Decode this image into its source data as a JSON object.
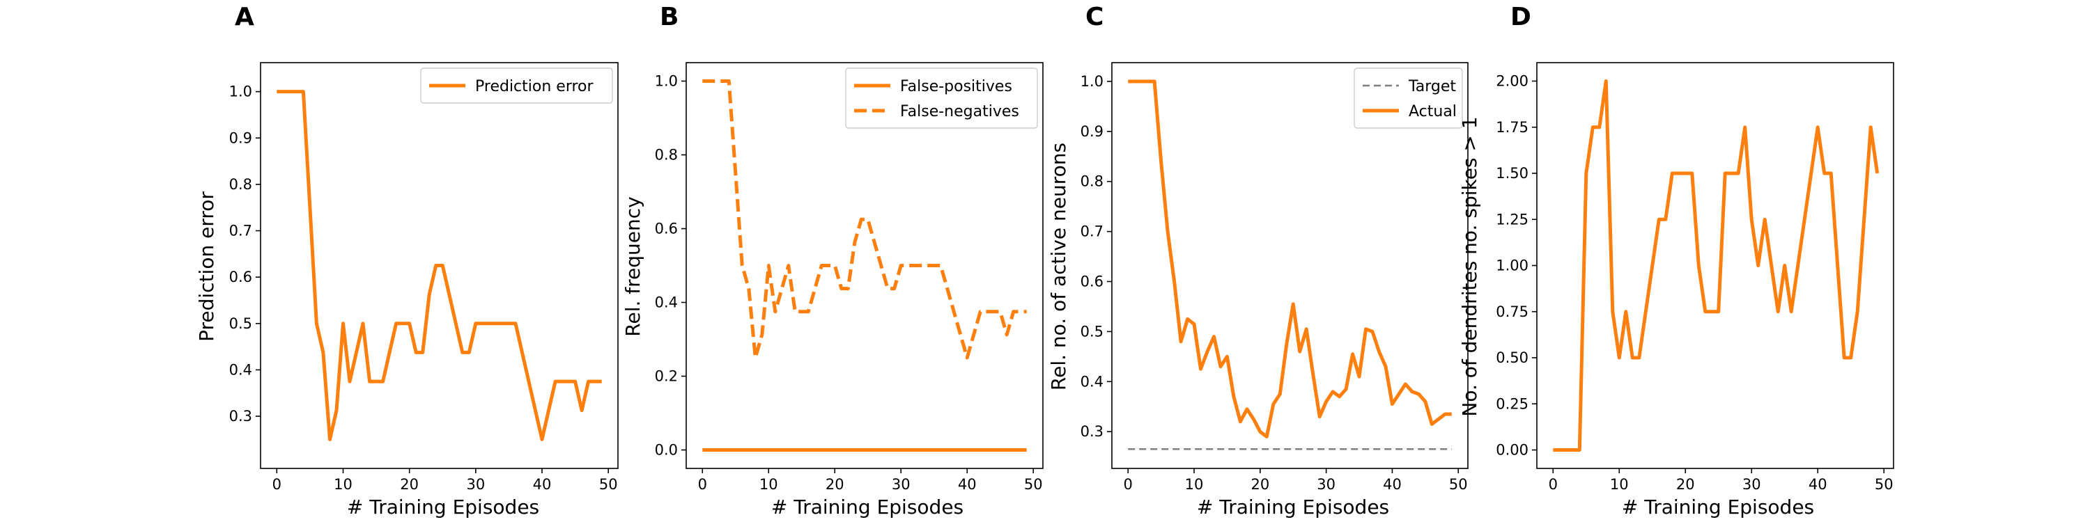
{
  "panels": [
    {
      "letter": "A",
      "xlabel": "# Training Episodes",
      "ylabel": "Prediction error"
    },
    {
      "letter": "B",
      "xlabel": "# Training Episodes",
      "ylabel": "Rel. frequency"
    },
    {
      "letter": "C",
      "xlabel": "# Training Episodes",
      "ylabel": "Rel. no. of active neurons"
    },
    {
      "letter": "D",
      "xlabel": "# Training Episodes",
      "ylabel": "No. of dendrites no. spikes > 1"
    }
  ],
  "colors": {
    "series": "#ff7f0e",
    "target": "#7f7f7f",
    "axes": "#000000"
  },
  "chart_data": [
    {
      "type": "line",
      "title": "A",
      "xlabel": "# Training Episodes",
      "ylabel": "Prediction error",
      "xlim": [
        -2.45,
        51.45
      ],
      "ylim": [
        0.1875,
        1.0625
      ],
      "xticks": [
        0,
        10,
        20,
        30,
        40,
        50
      ],
      "yticks": [
        0.3,
        0.4,
        0.5,
        0.6,
        0.7,
        0.8,
        0.9,
        1.0
      ],
      "ytick_labels": [
        "0.3",
        "0.4",
        "0.5",
        "0.6",
        "0.7",
        "0.8",
        "0.9",
        "1.0"
      ],
      "legend": "top-right",
      "series": [
        {
          "name": "Prediction error",
          "style": "solid",
          "color": "#ff7f0e",
          "x": [
            0,
            1,
            2,
            3,
            4,
            5,
            6,
            7,
            8,
            9,
            10,
            11,
            12,
            13,
            14,
            15,
            16,
            17,
            18,
            19,
            20,
            21,
            22,
            23,
            24,
            25,
            26,
            27,
            28,
            29,
            30,
            31,
            32,
            33,
            34,
            35,
            36,
            37,
            38,
            39,
            40,
            41,
            42,
            43,
            44,
            45,
            46,
            47,
            48,
            49
          ],
          "y": [
            1.0,
            1.0,
            1.0,
            1.0,
            1.0,
            0.75,
            0.5,
            0.4375,
            0.25,
            0.3125,
            0.5,
            0.375,
            0.4375,
            0.5,
            0.375,
            0.375,
            0.375,
            0.4375,
            0.5,
            0.5,
            0.5,
            0.4375,
            0.4375,
            0.5625,
            0.625,
            0.625,
            0.5625,
            0.5,
            0.4375,
            0.4375,
            0.5,
            0.5,
            0.5,
            0.5,
            0.5,
            0.5,
            0.5,
            0.4375,
            0.375,
            0.3125,
            0.25,
            0.3125,
            0.375,
            0.375,
            0.375,
            0.375,
            0.3125,
            0.375,
            0.375,
            0.375
          ]
        }
      ]
    },
    {
      "type": "line",
      "title": "B",
      "xlabel": "# Training Episodes",
      "ylabel": "Rel. frequency",
      "xlim": [
        -2.45,
        51.45
      ],
      "ylim": [
        -0.05,
        1.05
      ],
      "xticks": [
        0,
        10,
        20,
        30,
        40,
        50
      ],
      "yticks": [
        0.0,
        0.2,
        0.4,
        0.6,
        0.8,
        1.0
      ],
      "ytick_labels": [
        "0.0",
        "0.2",
        "0.4",
        "0.6",
        "0.8",
        "1.0"
      ],
      "legend": "top-right",
      "series": [
        {
          "name": "False-positives",
          "style": "solid",
          "color": "#ff7f0e",
          "x": [
            0,
            49
          ],
          "y": [
            0.0,
            0.0
          ]
        },
        {
          "name": "False-negatives",
          "style": "dashed",
          "color": "#ff7f0e",
          "x": [
            0,
            1,
            2,
            3,
            4,
            5,
            6,
            7,
            8,
            9,
            10,
            11,
            12,
            13,
            14,
            15,
            16,
            17,
            18,
            19,
            20,
            21,
            22,
            23,
            24,
            25,
            26,
            27,
            28,
            29,
            30,
            31,
            32,
            33,
            34,
            35,
            36,
            37,
            38,
            39,
            40,
            41,
            42,
            43,
            44,
            45,
            46,
            47,
            48,
            49
          ],
          "y": [
            1.0,
            1.0,
            1.0,
            1.0,
            1.0,
            0.75,
            0.5,
            0.4375,
            0.25,
            0.3125,
            0.5,
            0.375,
            0.4375,
            0.5,
            0.375,
            0.375,
            0.375,
            0.4375,
            0.5,
            0.5,
            0.5,
            0.4375,
            0.4375,
            0.5625,
            0.625,
            0.625,
            0.5625,
            0.5,
            0.4375,
            0.4375,
            0.5,
            0.5,
            0.5,
            0.5,
            0.5,
            0.5,
            0.5,
            0.4375,
            0.375,
            0.3125,
            0.25,
            0.3125,
            0.375,
            0.375,
            0.375,
            0.375,
            0.3125,
            0.375,
            0.375,
            0.375
          ]
        }
      ]
    },
    {
      "type": "line",
      "title": "C",
      "xlabel": "# Training Episodes",
      "ylabel": "Rel. no. of active neurons",
      "xlim": [
        -2.45,
        51.45
      ],
      "ylim": [
        0.2265,
        1.0375
      ],
      "xticks": [
        0,
        10,
        20,
        30,
        40,
        50
      ],
      "yticks": [
        0.3,
        0.4,
        0.5,
        0.6,
        0.7,
        0.8,
        0.9,
        1.0
      ],
      "ytick_labels": [
        "0.3",
        "0.4",
        "0.5",
        "0.6",
        "0.7",
        "0.8",
        "0.9",
        "1.0"
      ],
      "legend": "top-right",
      "series": [
        {
          "name": "Target",
          "style": "dashed",
          "color": "#7f7f7f",
          "x": [
            0,
            49
          ],
          "y": [
            0.265,
            0.265
          ]
        },
        {
          "name": "Actual",
          "style": "solid",
          "color": "#ff7f0e",
          "x": [
            0,
            1,
            2,
            3,
            4,
            5,
            6,
            7,
            8,
            9,
            10,
            11,
            12,
            13,
            14,
            15,
            16,
            17,
            18,
            19,
            20,
            21,
            22,
            23,
            24,
            25,
            26,
            27,
            28,
            29,
            30,
            31,
            32,
            33,
            34,
            35,
            36,
            37,
            38,
            39,
            40,
            41,
            42,
            43,
            44,
            45,
            46,
            47,
            48,
            49
          ],
          "y": [
            1.0,
            1.0,
            1.0,
            1.0,
            1.0,
            0.84,
            0.7,
            0.6,
            0.48,
            0.525,
            0.515,
            0.425,
            0.46,
            0.49,
            0.43,
            0.45,
            0.37,
            0.32,
            0.345,
            0.325,
            0.3,
            0.29,
            0.355,
            0.375,
            0.475,
            0.555,
            0.46,
            0.505,
            0.415,
            0.33,
            0.36,
            0.38,
            0.37,
            0.385,
            0.455,
            0.41,
            0.505,
            0.5,
            0.46,
            0.43,
            0.355,
            0.375,
            0.395,
            0.38,
            0.375,
            0.36,
            0.315,
            0.325,
            0.335,
            0.335
          ]
        }
      ]
    },
    {
      "type": "line",
      "title": "D",
      "xlabel": "# Training Episodes",
      "ylabel": "No. of dendrites no. spikes > 1",
      "xlim": [
        -2.45,
        51.45
      ],
      "ylim": [
        -0.1,
        2.1
      ],
      "xticks": [
        0,
        10,
        20,
        30,
        40,
        50
      ],
      "yticks": [
        0.0,
        0.25,
        0.5,
        0.75,
        1.0,
        1.25,
        1.5,
        1.75,
        2.0
      ],
      "ytick_labels": [
        "0.00",
        "0.25",
        "0.50",
        "0.75",
        "1.00",
        "1.25",
        "1.50",
        "1.75",
        "2.00"
      ],
      "legend": "none",
      "series": [
        {
          "style": "solid",
          "color": "#ff7f0e",
          "x": [
            0,
            1,
            2,
            3,
            4,
            5,
            6,
            7,
            8,
            9,
            10,
            11,
            12,
            13,
            14,
            15,
            16,
            17,
            18,
            19,
            20,
            21,
            22,
            23,
            24,
            25,
            26,
            27,
            28,
            29,
            30,
            31,
            32,
            33,
            34,
            35,
            36,
            37,
            38,
            39,
            40,
            41,
            42,
            43,
            44,
            45,
            46,
            47,
            48,
            49
          ],
          "y": [
            0.0,
            0.0,
            0.0,
            0.0,
            0.0,
            1.5,
            1.75,
            1.75,
            2.0,
            0.75,
            0.5,
            0.75,
            0.5,
            0.5,
            0.75,
            1.0,
            1.25,
            1.25,
            1.5,
            1.5,
            1.5,
            1.5,
            1.0,
            0.75,
            0.75,
            0.75,
            1.5,
            1.5,
            1.5,
            1.75,
            1.25,
            1.0,
            1.25,
            1.0,
            0.75,
            1.0,
            0.75,
            1.0,
            1.25,
            1.5,
            1.75,
            1.5,
            1.5,
            1.0,
            0.5,
            0.5,
            0.75,
            1.25,
            1.75,
            1.5
          ]
        }
      ]
    }
  ]
}
